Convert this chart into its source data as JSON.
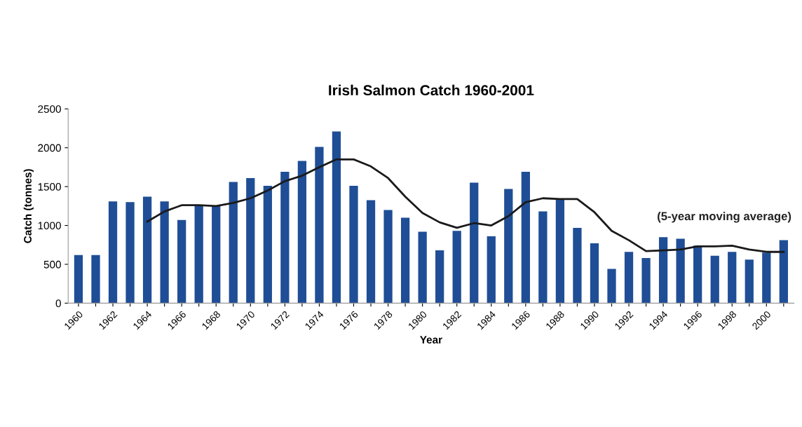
{
  "chart_data": {
    "type": "bar",
    "title": "Irish Salmon Catch 1960-2001",
    "xlabel": "Year",
    "ylabel": "Catch (tonnes)",
    "categories": [
      "1960",
      null,
      "1962",
      null,
      "1964",
      null,
      "1966",
      null,
      "1968",
      null,
      "1970",
      null,
      "1972",
      null,
      "1974",
      null,
      "1976",
      null,
      "1978",
      null,
      "1980",
      null,
      "1982",
      null,
      "1984",
      null,
      "1986",
      null,
      "1988",
      null,
      "1990",
      null,
      "1992",
      null,
      "1994",
      null,
      "1996",
      null,
      "1998",
      null,
      "2000",
      null
    ],
    "series": [
      {
        "color": "#1f4e96",
        "values": [
          620,
          620,
          1310,
          1300,
          1370,
          1310,
          1070,
          1260,
          1250,
          1560,
          1610,
          1510,
          1690,
          1830,
          2010,
          2210,
          1510,
          1325,
          1200,
          1100,
          920,
          680,
          930,
          1550,
          860,
          1470,
          1690,
          1180,
          1330,
          970,
          770,
          440,
          660,
          580,
          850,
          830,
          740,
          610,
          660,
          560,
          650,
          810
        ]
      },
      {
        "type": "line",
        "name": "(5-year moving average)",
        "color": "#1a1a1a",
        "values": [
          null,
          null,
          null,
          null,
          1050,
          1180,
          1260,
          1260,
          1250,
          1290,
          1350,
          1450,
          1570,
          1640,
          1750,
          1850,
          1850,
          1760,
          1610,
          1370,
          1160,
          1040,
          970,
          1030,
          1000,
          1120,
          1300,
          1350,
          1340,
          1340,
          1170,
          930,
          810,
          670,
          680,
          690,
          730,
          730,
          740,
          690,
          660,
          660
        ]
      }
    ],
    "ylim": [
      0,
      2500
    ],
    "yticks": [
      0,
      500,
      1000,
      1500,
      2000,
      2500
    ],
    "grid": false,
    "legend": false
  }
}
